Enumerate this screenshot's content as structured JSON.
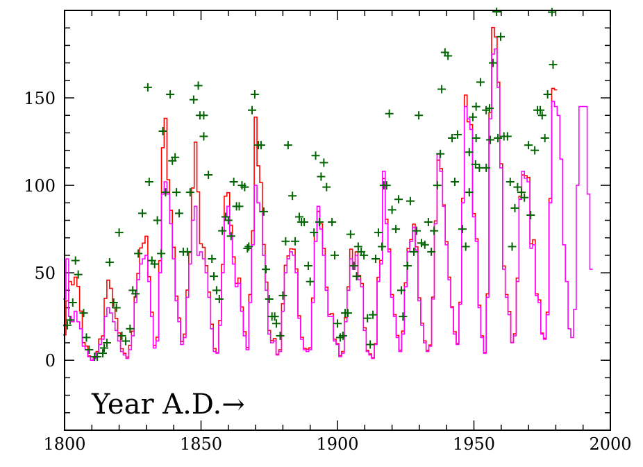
{
  "chart_data": {
    "type": "line",
    "title": "",
    "xlabel": "Year A.D.→",
    "ylabel": "",
    "xlim": [
      1800,
      2000
    ],
    "ylim": [
      -40,
      200
    ],
    "grid": false,
    "x_ticks": [
      "1800",
      "1850",
      "1900",
      "1950",
      "2000"
    ],
    "y_ticks": [
      "0",
      "50",
      "100",
      "150"
    ],
    "colors": {
      "series_red": "#ff0000",
      "series_magenta": "#ff00ff",
      "points": "#006400",
      "axis": "#000000"
    },
    "step_style": true,
    "series": [
      {
        "color": "#ff0000",
        "x_first": 1800,
        "x_last": 1980,
        "values": [
          14.5,
          34,
          45,
          43.1,
          47.5,
          42.2,
          28.1,
          10.1,
          8.1,
          2.5,
          0,
          1.4,
          5,
          12.2,
          13.9,
          35.4,
          45.8,
          41.1,
          30.1,
          23.9,
          15.6,
          6.6,
          4,
          1.8,
          8.5,
          16.6,
          36.3,
          49.6,
          64.2,
          67,
          70.9,
          47.8,
          27.5,
          8.5,
          13.2,
          56.9,
          121.5,
          138.3,
          103.2,
          85.7,
          64.6,
          36.7,
          24.2,
          10.7,
          15,
          40.1,
          61.5,
          98.5,
          124.7,
          96.3,
          66.6,
          64.5,
          54.1,
          39,
          20.6,
          6.7,
          4.3,
          22.7,
          54.8,
          93.8,
          95.8,
          77.2,
          59.1,
          44,
          47,
          30.5,
          16.3,
          7.3,
          37.6,
          74,
          139,
          111.2,
          101.6,
          66.2,
          44.7,
          17,
          11.3,
          12.4,
          3.4,
          6,
          32.3,
          54.3,
          59.7,
          63.7,
          63.5,
          52.2,
          25.4,
          13.1,
          6.8,
          6.3,
          7.1,
          35.6,
          73,
          85.1,
          78,
          64,
          41.8,
          26.2,
          26.7,
          12.1,
          9.5,
          2.7,
          5,
          24.4,
          42,
          63.5,
          53.8,
          62,
          48.5,
          43.9,
          18.6,
          5.7,
          3.6,
          1.4,
          9.6,
          47.4,
          57.1,
          103.9,
          80.6,
          63.6,
          37.6,
          26.1,
          14.2,
          5.8,
          16.7,
          44.3,
          63.9,
          69,
          77.8,
          64.9,
          35.7,
          21.2,
          11.1,
          5.7,
          8.7,
          36.1,
          79.7,
          114.4,
          109.6,
          88.8,
          67.8,
          47.5,
          30.6,
          16.3,
          9.6,
          33.2,
          92.6,
          151.6,
          136.3,
          134.7,
          83.9,
          69.4,
          31.5,
          13.9,
          4.4,
          38,
          141.7,
          190.2,
          184.8,
          159,
          112.3,
          53.9,
          37.6,
          27.9,
          10.2,
          15.1,
          47,
          93.8,
          105.9,
          105.5,
          104.5,
          66.6,
          68.9,
          38,
          34.5,
          15.5,
          12.6,
          27.5,
          92.5,
          155.4,
          154.6
        ]
      },
      {
        "color": "#ff00ff",
        "x_first": 1800,
        "x_last": 1993,
        "values": [
          35,
          58,
          25,
          22,
          28,
          22,
          18,
          8,
          6,
          2,
          0,
          1,
          4,
          9,
          12,
          25,
          30,
          27,
          22,
          17,
          11,
          5,
          3,
          1,
          6,
          14,
          33,
          46,
          55,
          58,
          60,
          45,
          25,
          7,
          11,
          50,
          95,
          102,
          95,
          78,
          58,
          34,
          22,
          9,
          13,
          36,
          55,
          80,
          88,
          60,
          62,
          58,
          50,
          36,
          18,
          5,
          4,
          20,
          50,
          82,
          88,
          72,
          55,
          42,
          44,
          28,
          14,
          6,
          33,
          66,
          100,
          90,
          85,
          60,
          40,
          15,
          10,
          11,
          3,
          5,
          28,
          50,
          58,
          62,
          60,
          50,
          24,
          12,
          6,
          5,
          6,
          33,
          68,
          88,
          75,
          60,
          40,
          25,
          25,
          11,
          9,
          2,
          4,
          22,
          40,
          58,
          52,
          60,
          46,
          42,
          17,
          5,
          3,
          1,
          9,
          45,
          55,
          108,
          78,
          62,
          36,
          25,
          13,
          5,
          15,
          42,
          62,
          68,
          76,
          63,
          34,
          20,
          10,
          5,
          8,
          35,
          78,
          118,
          108,
          88,
          66,
          46,
          30,
          15,
          9,
          32,
          90,
          145,
          138,
          132,
          82,
          68,
          30,
          13,
          4,
          36,
          138,
          175,
          178,
          156,
          110,
          52,
          36,
          26,
          10,
          14,
          45,
          92,
          108,
          104,
          102,
          64,
          66,
          37,
          33,
          15,
          12,
          26,
          90,
          148,
          145,
          140,
          115,
          66,
          45,
          18,
          13,
          29,
          100,
          145,
          145,
          145,
          95,
          52
        ]
      }
    ],
    "points": {
      "color": "#006400",
      "marker": "plus",
      "x": [
        1801,
        1802,
        1803,
        1804,
        1805,
        1807,
        1808,
        1809,
        1811,
        1812,
        1814,
        1814.5,
        1815.5,
        1816.5,
        1818,
        1819,
        1820,
        1821,
        1822.4,
        1824,
        1825,
        1826,
        1827,
        1828.5,
        1830.5,
        1831,
        1832,
        1833,
        1834,
        1835.4,
        1836,
        1837,
        1838.7,
        1839.5,
        1840.5,
        1841,
        1842,
        1843.5,
        1845,
        1846,
        1847.3,
        1849,
        1849.6,
        1851,
        1851,
        1852.7,
        1854,
        1854.7,
        1855.7,
        1856.7,
        1857.8,
        1859,
        1860,
        1861,
        1862,
        1863,
        1864,
        1865,
        1866,
        1867,
        1867.5,
        1868.7,
        1869.7,
        1871,
        1872,
        1873,
        1873.8,
        1875,
        1876,
        1877,
        1877.6,
        1879,
        1880,
        1881,
        1881.9,
        1883.5,
        1884.5,
        1886,
        1886.8,
        1887.8,
        1889.3,
        1890,
        1891.4,
        1892,
        1893.4,
        1894,
        1895,
        1896,
        1898,
        1899,
        1900,
        1901,
        1902,
        1902.8,
        1903.8,
        1904.8,
        1906,
        1907,
        1907.6,
        1908.7,
        1909.7,
        1911,
        1912,
        1913,
        1914,
        1915,
        1916.3,
        1917,
        1918,
        1919,
        1920,
        1921.4,
        1922.4,
        1923.4,
        1924,
        1925.7,
        1926.7,
        1928,
        1929,
        1929.8,
        1930.8,
        1932,
        1933.3,
        1934.4,
        1935.4,
        1936.6,
        1937.7,
        1938.2,
        1939.4,
        1940.5,
        1942,
        1943,
        1944,
        1945.8,
        1947,
        1948.3,
        1948.3,
        1949.6,
        1950.8,
        1950.8,
        1950.6,
        1952,
        1952.4,
        1954.5,
        1954.5,
        1955.7,
        1956,
        1957,
        1958.3,
        1958.8,
        1959.8,
        1961,
        1962.3,
        1963.3,
        1964,
        1965,
        1966,
        1967.4,
        1968.5,
        1970,
        1970.8,
        1972.3,
        1973.3,
        1974.3,
        1975,
        1976,
        1977,
        1978.6,
        1979
      ],
      "y": [
        20,
        23,
        33,
        57,
        49,
        27,
        13,
        6,
        2,
        2,
        4,
        7,
        10,
        56,
        33,
        30,
        73,
        14,
        11,
        18,
        40,
        38,
        61,
        84,
        156,
        102,
        57,
        55,
        80,
        61,
        131,
        96,
        152,
        114,
        116,
        96,
        84,
        62,
        62,
        96,
        149,
        157,
        140,
        140,
        128,
        106,
        58,
        48,
        40,
        35,
        74,
        82,
        80,
        71,
        102,
        88,
        88,
        100,
        99,
        64,
        65,
        143,
        152,
        123,
        123,
        85,
        52,
        35,
        25,
        25,
        21,
        14,
        37,
        68,
        123,
        94,
        68,
        82,
        79,
        79,
        54,
        45,
        73,
        117,
        79,
        105,
        113,
        99,
        79,
        60,
        21,
        13,
        14,
        27,
        27,
        72,
        54,
        48,
        65,
        62,
        60,
        24,
        9,
        26,
        58,
        73,
        65,
        100,
        100,
        141,
        86,
        75,
        92,
        40,
        25,
        54,
        91,
        62,
        74,
        140,
        67,
        66,
        79,
        62,
        74,
        100,
        118,
        155,
        176,
        174,
        127,
        102,
        129,
        75,
        65,
        119,
        96,
        139,
        145,
        127,
        112,
        110,
        159,
        143,
        110,
        144,
        126,
        170,
        200,
        127,
        185,
        128,
        128,
        102,
        65,
        87,
        99,
        96,
        93,
        123,
        83,
        120,
        143,
        143,
        140,
        127,
        152,
        199,
        169
      ]
    }
  }
}
